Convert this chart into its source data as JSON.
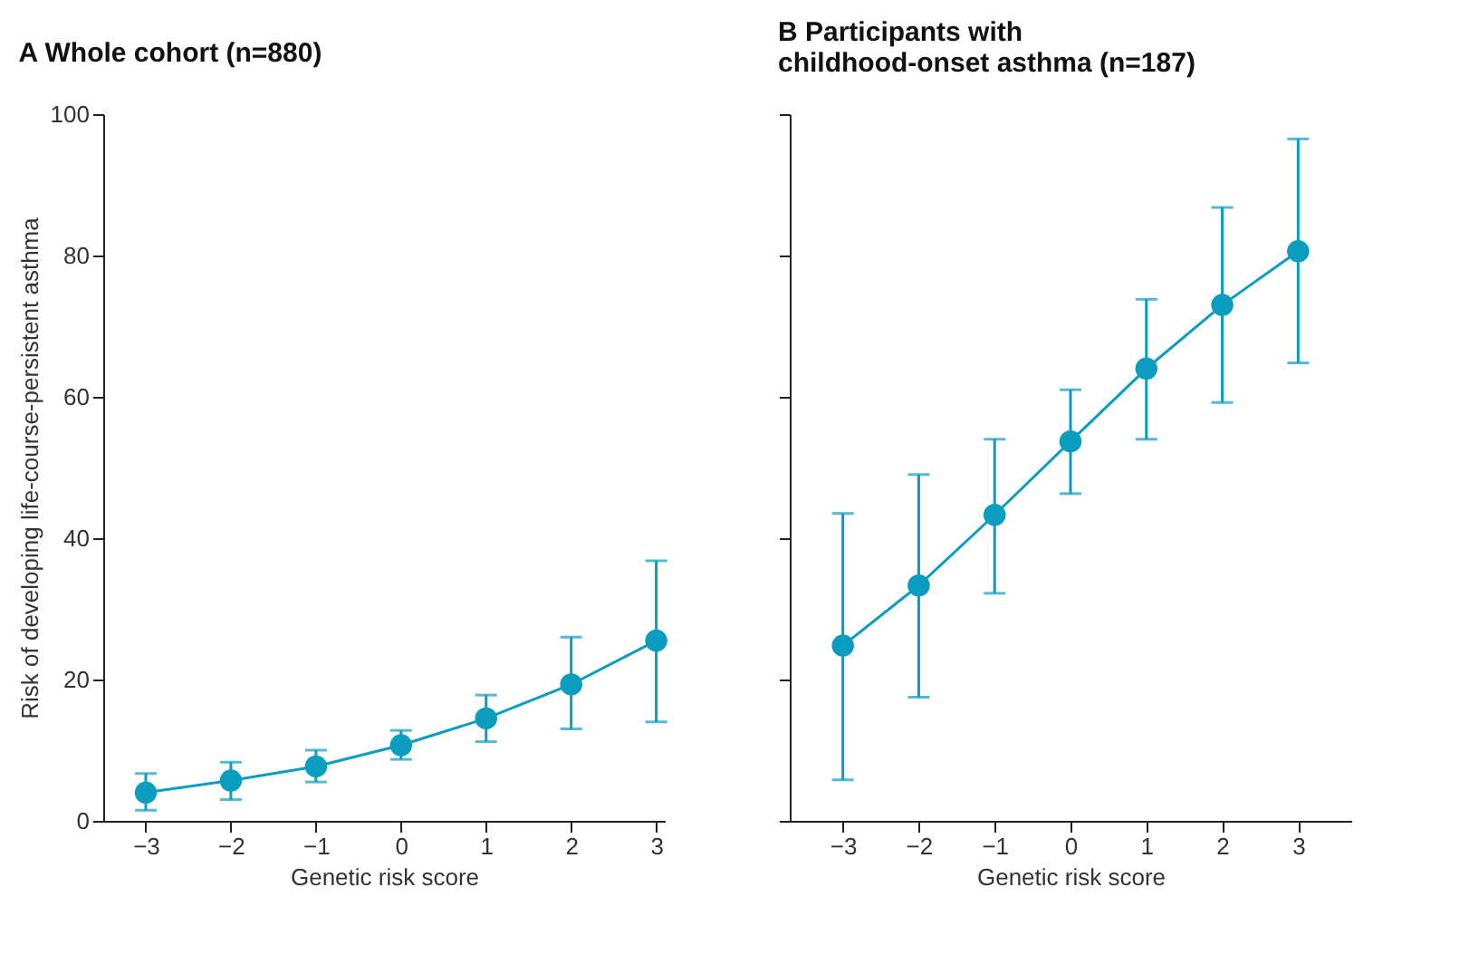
{
  "chart_data": [
    {
      "type": "line",
      "title": "A  Whole cohort (n=880)",
      "xlabel": "Genetic risk score",
      "ylabel": "Risk of developing life-course-persistent asthma",
      "x": [
        -3,
        -2,
        -1,
        0,
        1,
        2,
        3
      ],
      "xlim": [
        -3.5,
        3.1
      ],
      "xticks": [
        {
          "value": -3,
          "label": "−3"
        },
        {
          "value": -2,
          "label": "−2"
        },
        {
          "value": -1,
          "label": "−1"
        },
        0,
        1,
        2,
        3
      ],
      "ylim": [
        0,
        100
      ],
      "yticks": [
        0,
        20,
        40,
        60,
        80,
        100
      ],
      "grid": false,
      "marker": "circle",
      "line_style": "solid",
      "series": [
        {
          "color": "#0a9dc0",
          "values": [
            4,
            5.7,
            7.7,
            10.7,
            14.5,
            19.3,
            25.5
          ],
          "errors": [
            [
              1.5,
              6.7
            ],
            [
              3,
              8.3
            ],
            [
              5.5,
              10
            ],
            [
              8.7,
              12.8
            ],
            [
              11.2,
              17.8
            ],
            [
              13,
              26
            ],
            [
              14,
              36.8
            ]
          ]
        }
      ]
    },
    {
      "type": "line",
      "title": "B  Participants with childhood-onset asthma (n=187)",
      "xlabel": "Genetic risk score",
      "x": [
        -3,
        -2,
        -1,
        0,
        1,
        2,
        3
      ],
      "xlim": [
        -3.7,
        3.7
      ],
      "xticks": [
        {
          "value": -3,
          "label": "−3"
        },
        {
          "value": -2,
          "label": "−2"
        },
        {
          "value": -1,
          "label": "−1"
        },
        0,
        1,
        2,
        3
      ],
      "ylim": [
        0,
        100
      ],
      "yticks": [
        0,
        20,
        40,
        60,
        80,
        100
      ],
      "tick_labels": "x",
      "grid": false,
      "marker": "circle",
      "line_style": "solid",
      "series": [
        {
          "color": "#0a9dc0",
          "values": [
            24.8,
            33.3,
            43.3,
            53.7,
            64,
            73,
            80.6
          ],
          "errors": [
            [
              5.8,
              43.5
            ],
            [
              17.5,
              49
            ],
            [
              32.2,
              54
            ],
            [
              46.3,
              61
            ],
            [
              54,
              73.8
            ],
            [
              59.2,
              86.8
            ],
            [
              64.8,
              96.5
            ]
          ]
        }
      ]
    }
  ]
}
